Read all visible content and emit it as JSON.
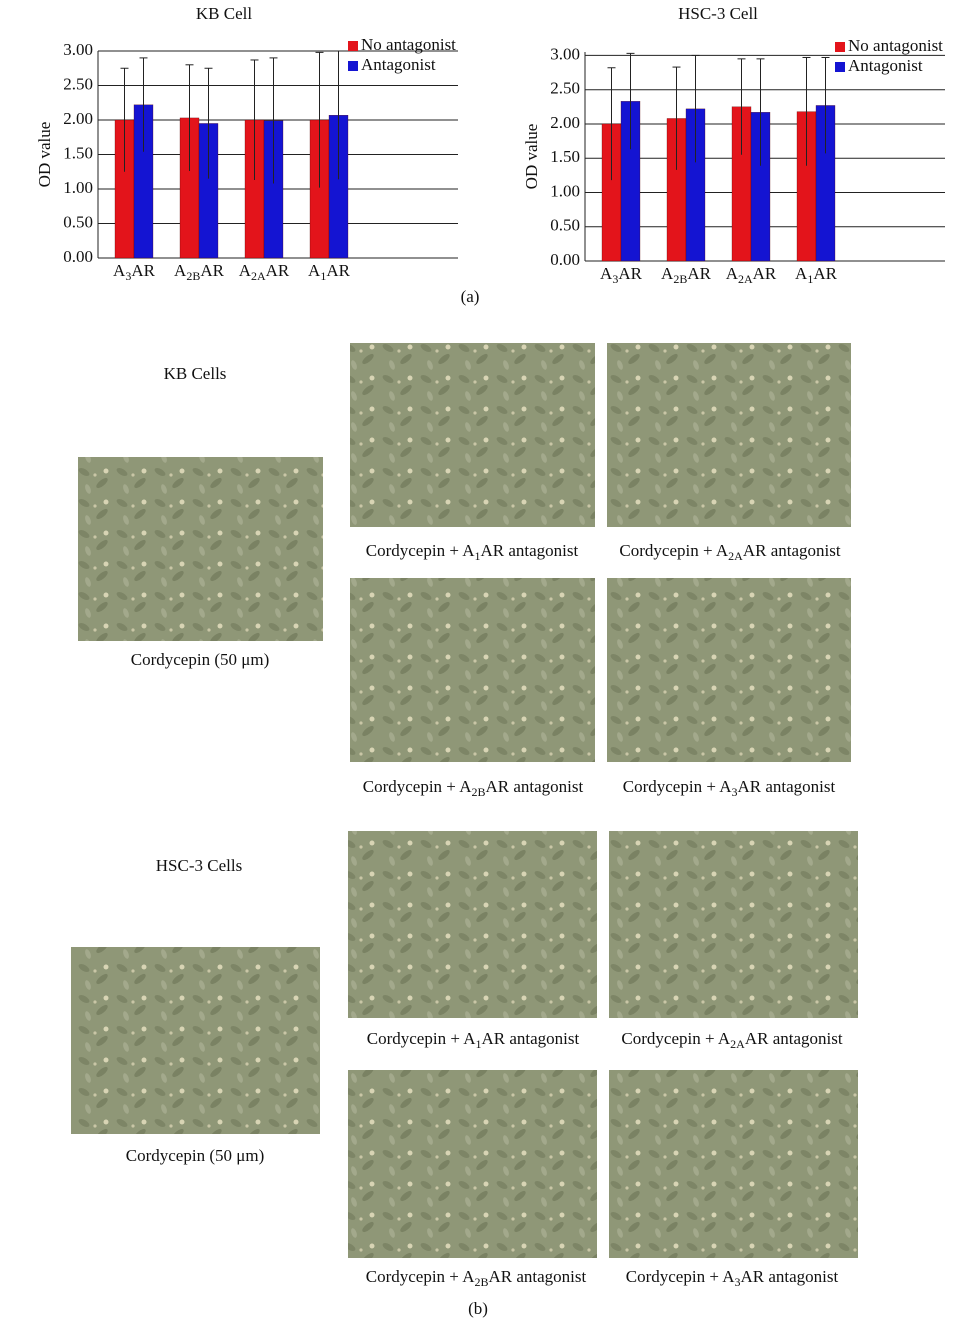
{
  "chart_data": [
    {
      "type": "bar",
      "title": "KB Cell",
      "y_label": "OD value",
      "categories": [
        [
          "A",
          "3",
          "AR"
        ],
        [
          "A",
          "2B",
          "AR"
        ],
        [
          "A",
          "2A",
          "AR"
        ],
        [
          "A",
          "1",
          "AR"
        ]
      ],
      "series": [
        {
          "name": "No antagonist",
          "color": "#e3141b",
          "values": [
            2.0,
            2.03,
            2.0,
            2.0
          ],
          "errors": [
            0.75,
            0.77,
            0.87,
            0.98
          ]
        },
        {
          "name": "Antagonist",
          "color": "#1414d2",
          "values": [
            2.22,
            1.95,
            1.99,
            2.07
          ],
          "errors": [
            0.68,
            0.8,
            0.91,
            0.93
          ]
        }
      ],
      "ylim": [
        0,
        3
      ],
      "yticks": [
        {
          "value": 0,
          "label": "0.00"
        },
        {
          "value": 0.5,
          "label": "0.50"
        },
        {
          "value": 1,
          "label": "1.00"
        },
        {
          "value": 1.5,
          "label": "1.50"
        },
        {
          "value": 2,
          "label": "2.00"
        },
        {
          "value": 2.5,
          "label": "2.50"
        },
        {
          "value": 3,
          "label": "3.00"
        }
      ],
      "grid": true,
      "legend": "top-right"
    },
    {
      "type": "bar",
      "title": "HSC-3 Cell",
      "y_label": "OD value",
      "categories": [
        [
          "A",
          "3",
          "AR"
        ],
        [
          "A",
          "2B",
          "AR"
        ],
        [
          "A",
          "2A",
          "AR"
        ],
        [
          "A",
          "1",
          "AR"
        ]
      ],
      "series": [
        {
          "name": "No antagonist",
          "color": "#e3141b",
          "values": [
            2.0,
            2.08,
            2.25,
            2.18
          ],
          "errors": [
            0.82,
            0.75,
            0.7,
            0.79
          ]
        },
        {
          "name": "Antagonist",
          "color": "#1414d2",
          "values": [
            2.33,
            2.22,
            2.17,
            2.27
          ],
          "errors": [
            0.7,
            0.78,
            0.78,
            0.7
          ]
        }
      ],
      "ylim": [
        0,
        3.05
      ],
      "yticks": [
        {
          "value": 0,
          "label": "0.00"
        },
        {
          "value": 0.5,
          "label": "0.50"
        },
        {
          "value": 1,
          "label": "1.00"
        },
        {
          "value": 1.5,
          "label": "1.50"
        },
        {
          "value": 2,
          "label": "2.00"
        },
        {
          "value": 2.5,
          "label": "2.50"
        },
        {
          "value": 3,
          "label": "3.00"
        }
      ],
      "grid": true,
      "legend": "top-right"
    }
  ],
  "figure_a_label": "(a)",
  "figure_b_label": "(b)",
  "panels": [
    {
      "title": "KB Cells",
      "control_caption": "Cordycepin (50 μm)",
      "captions": [
        [
          "Cordycepin + A",
          "1",
          "AR antagonist"
        ],
        [
          "Cordycepin + A",
          "2A",
          "AR antagonist"
        ],
        [
          "Cordycepin + A",
          "2B",
          "AR antagonist"
        ],
        [
          "Cordycepin + A",
          "3",
          "AR antagonist"
        ]
      ]
    },
    {
      "title": "HSC-3 Cells",
      "control_caption": "Cordycepin (50 μm)",
      "captions": [
        [
          "Cordycepin + A",
          "1",
          "AR antagonist"
        ],
        [
          "Cordycepin + A",
          "2A",
          "AR antagonist"
        ],
        [
          "Cordycepin + A",
          "2B",
          "AR antagonist"
        ],
        [
          "Cordycepin + A",
          "3",
          "AR antagonist"
        ]
      ]
    }
  ]
}
